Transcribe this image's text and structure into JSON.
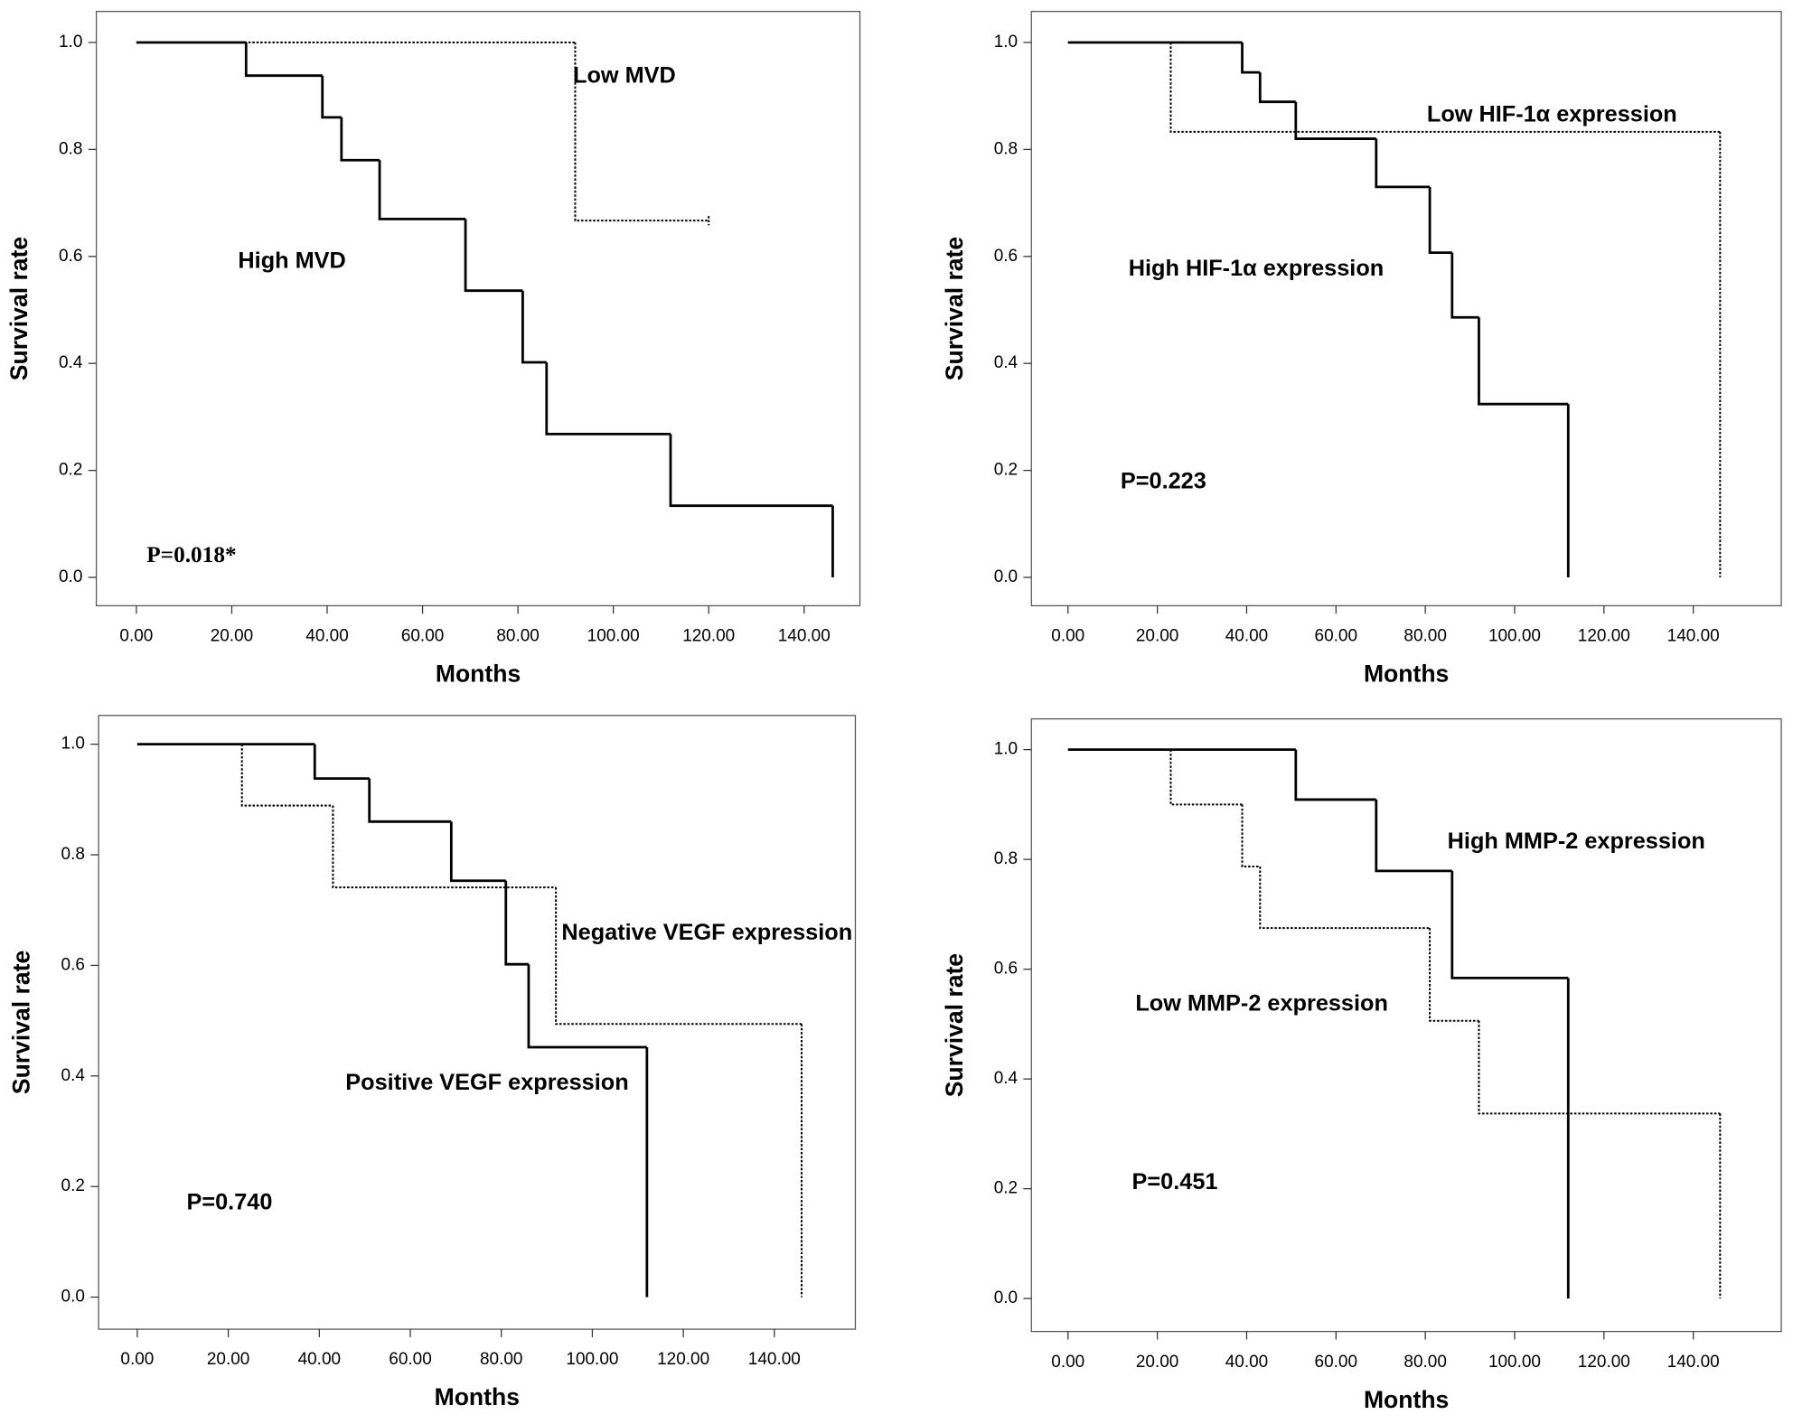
{
  "chart_data": [
    {
      "type": "step",
      "xlabel": "Months",
      "ylabel": "Survival rate",
      "xlim": [
        -8.4,
        151.7
      ],
      "ylim": [
        -0.053,
        1.058
      ],
      "xticks": [
        {
          "value": 0,
          "label": "0.00"
        },
        {
          "value": 20,
          "label": "20.00"
        },
        {
          "value": 40,
          "label": "40.00"
        },
        {
          "value": 60,
          "label": "60.00"
        },
        {
          "value": 80,
          "label": "80.00"
        },
        {
          "value": 100,
          "label": "100.00"
        },
        {
          "value": 120,
          "label": "120.00"
        },
        {
          "value": 140,
          "label": "140.00"
        }
      ],
      "yticks": [
        {
          "value": 0,
          "label": "0.0"
        },
        {
          "value": 0.2,
          "label": "0.2"
        },
        {
          "value": 0.4,
          "label": "0.4"
        },
        {
          "value": 0.6,
          "label": "0.6"
        },
        {
          "value": 0.8,
          "label": "0.8"
        },
        {
          "value": 1,
          "label": "1.0"
        }
      ],
      "annotation": "P=0.018*",
      "series": [
        {
          "name": "Low MVD",
          "color": "#000000",
          "style": "dotted",
          "x": [
            0,
            92,
            120
          ],
          "values": [
            1,
            0.667,
            0.667
          ]
        },
        {
          "name": "High MVD",
          "color": "#000000",
          "style": "solid",
          "x": [
            0,
            23,
            39,
            43,
            51,
            69,
            81,
            86,
            112,
            146
          ],
          "values": [
            1,
            0.938,
            0.86,
            0.78,
            0.67,
            0.536,
            0.402,
            0.268,
            0.134,
            0
          ]
        }
      ]
    },
    {
      "type": "step",
      "xlabel": "Months",
      "ylabel": "Survival rate",
      "xlim": [
        -8.2,
        159.7
      ],
      "ylim": [
        -0.053,
        1.058
      ],
      "xticks": [
        {
          "value": 0,
          "label": "0.00"
        },
        {
          "value": 20,
          "label": "20.00"
        },
        {
          "value": 40,
          "label": "40.00"
        },
        {
          "value": 60,
          "label": "60.00"
        },
        {
          "value": 80,
          "label": "80.00"
        },
        {
          "value": 100,
          "label": "100.00"
        },
        {
          "value": 120,
          "label": "120.00"
        },
        {
          "value": 140,
          "label": "140.00"
        }
      ],
      "yticks": [
        {
          "value": 0,
          "label": "0.0"
        },
        {
          "value": 0.2,
          "label": "0.2"
        },
        {
          "value": 0.4,
          "label": "0.4"
        },
        {
          "value": 0.6,
          "label": "0.6"
        },
        {
          "value": 0.8,
          "label": "0.8"
        },
        {
          "value": 1,
          "label": "1.0"
        }
      ],
      "annotation": "P=0.223",
      "series": [
        {
          "name": "Low HIF-1α expression",
          "color": "#000000",
          "style": "dotted",
          "x": [
            0,
            23,
            146
          ],
          "values": [
            1,
            0.833,
            0
          ]
        },
        {
          "name": "High HIF-1α expression",
          "color": "#000000",
          "style": "solid",
          "x": [
            0,
            39,
            43,
            51,
            69,
            81,
            86,
            92,
            112
          ],
          "values": [
            1,
            0.944,
            0.889,
            0.82,
            0.73,
            0.607,
            0.486,
            0.324,
            0
          ]
        }
      ]
    },
    {
      "type": "step",
      "xlabel": "Months",
      "ylabel": "Survival rate",
      "xlim": [
        -8.5,
        157.8
      ],
      "ylim": [
        -0.058,
        1.052
      ],
      "xticks": [
        {
          "value": 0,
          "label": "0.00"
        },
        {
          "value": 20,
          "label": "20.00"
        },
        {
          "value": 40,
          "label": "40.00"
        },
        {
          "value": 60,
          "label": "60.00"
        },
        {
          "value": 80,
          "label": "80.00"
        },
        {
          "value": 100,
          "label": "100.00"
        },
        {
          "value": 120,
          "label": "120.00"
        },
        {
          "value": 140,
          "label": "140.00"
        }
      ],
      "yticks": [
        {
          "value": 0,
          "label": "0.0"
        },
        {
          "value": 0.2,
          "label": "0.2"
        },
        {
          "value": 0.4,
          "label": "0.4"
        },
        {
          "value": 0.6,
          "label": "0.6"
        },
        {
          "value": 0.8,
          "label": "0.8"
        },
        {
          "value": 1,
          "label": "1.0"
        }
      ],
      "annotation": "P=0.740",
      "series": [
        {
          "name": "Negative VEGF expression",
          "color": "#000000",
          "style": "dotted",
          "x": [
            0,
            23,
            43,
            92,
            146
          ],
          "values": [
            1,
            0.889,
            0.741,
            0.494,
            0
          ]
        },
        {
          "name": "Positive VEGF expression",
          "color": "#000000",
          "style": "solid",
          "x": [
            0,
            39,
            51,
            69,
            81,
            86,
            112
          ],
          "values": [
            1,
            0.938,
            0.86,
            0.753,
            0.602,
            0.452,
            0
          ]
        }
      ]
    },
    {
      "type": "step",
      "xlabel": "Months",
      "ylabel": "Survival rate",
      "xlim": [
        -8.2,
        159.7
      ],
      "ylim": [
        -0.06,
        1.056
      ],
      "xticks": [
        {
          "value": 0,
          "label": "0.00"
        },
        {
          "value": 20,
          "label": "20.00"
        },
        {
          "value": 40,
          "label": "40.00"
        },
        {
          "value": 60,
          "label": "60.00"
        },
        {
          "value": 80,
          "label": "80.00"
        },
        {
          "value": 100,
          "label": "100.00"
        },
        {
          "value": 120,
          "label": "120.00"
        },
        {
          "value": 140,
          "label": "140.00"
        }
      ],
      "yticks": [
        {
          "value": 0,
          "label": "0.0"
        },
        {
          "value": 0.2,
          "label": "0.2"
        },
        {
          "value": 0.4,
          "label": "0.4"
        },
        {
          "value": 0.6,
          "label": "0.6"
        },
        {
          "value": 0.8,
          "label": "0.8"
        },
        {
          "value": 1,
          "label": "1.0"
        }
      ],
      "annotation": "P=0.451",
      "series": [
        {
          "name": "High MMP-2 expression",
          "color": "#000000",
          "style": "solid",
          "x": [
            0,
            51,
            69,
            86,
            112
          ],
          "values": [
            1,
            0.909,
            0.779,
            0.584,
            0
          ]
        },
        {
          "name": "Low MMP-2 expression",
          "color": "#000000",
          "style": "dotted",
          "x": [
            0,
            23,
            39,
            43,
            81,
            92,
            146
          ],
          "values": [
            1,
            0.9,
            0.787,
            0.675,
            0.506,
            0.337,
            0
          ]
        }
      ]
    }
  ]
}
